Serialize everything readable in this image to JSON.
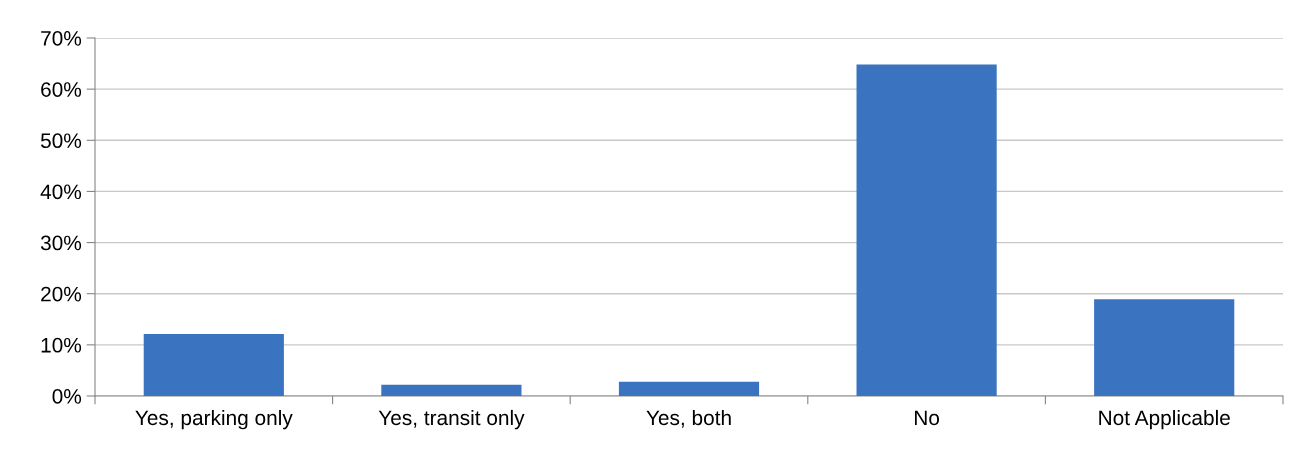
{
  "chart_data": {
    "type": "bar",
    "categories": [
      "Yes, parking only",
      "Yes, transit only",
      "Yes, both",
      "No",
      "Not Applicable"
    ],
    "values": [
      12.1,
      2.2,
      2.8,
      64.8,
      18.9
    ],
    "color": "#3a73c0",
    "ylim": [
      0,
      70
    ],
    "yticks": [
      {
        "value": 0,
        "label": "0%"
      },
      {
        "value": 10,
        "label": "10%"
      },
      {
        "value": 20,
        "label": "20%"
      },
      {
        "value": 30,
        "label": "30%"
      },
      {
        "value": 40,
        "label": "40%"
      },
      {
        "value": 50,
        "label": "50%"
      },
      {
        "value": 60,
        "label": "60%"
      },
      {
        "value": 70,
        "label": "70%"
      }
    ],
    "grid": "y",
    "legend": false
  }
}
